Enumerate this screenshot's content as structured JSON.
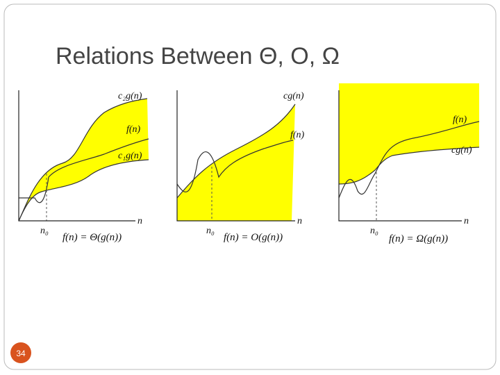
{
  "title": "Relations Between Θ, O, Ω",
  "page_number": "34",
  "panels": [
    {
      "labels": [
        "c₂g(n)",
        "f(n)",
        "c₁g(n)"
      ],
      "x_axis": "n",
      "threshold": "n₀",
      "caption": "f(n) = Θ(g(n))"
    },
    {
      "labels": [
        "cg(n)",
        "f(n)"
      ],
      "x_axis": "n",
      "threshold": "n₀",
      "caption": "f(n) = O(g(n))"
    },
    {
      "labels": [
        "f(n)",
        "cg(n)"
      ],
      "x_axis": "n",
      "threshold": "n₀",
      "caption": "f(n) = Ω(g(n))"
    }
  ]
}
